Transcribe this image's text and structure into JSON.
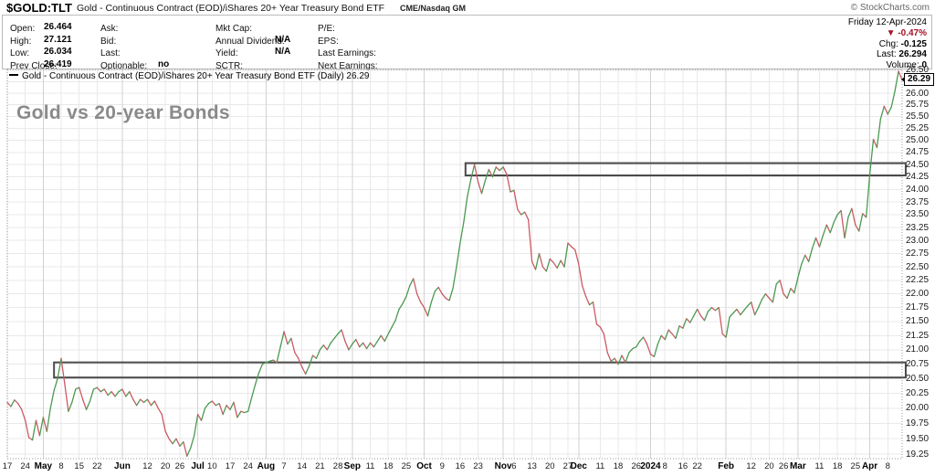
{
  "header": {
    "symbol": "$GOLD:TLT",
    "name": "Gold - Continuous Contract (EOD)/iShares 20+ Year Treasury Bond ETF",
    "exchange": "CME/Nasdaq GM",
    "copyright": "© StockCharts.com"
  },
  "quote": {
    "col1": [
      {
        "label": "Open:",
        "value": "26.464"
      },
      {
        "label": "High:",
        "value": "27.121"
      },
      {
        "label": "Low:",
        "value": "26.034"
      },
      {
        "label": "Prev Close:",
        "value": "26.419"
      }
    ],
    "col2": [
      {
        "label": "Ask:",
        "value": ""
      },
      {
        "label": "Bid:",
        "value": ""
      },
      {
        "label": "Last:",
        "value": ""
      },
      {
        "label": "Optionable:",
        "value": "no"
      }
    ],
    "col3": [
      {
        "label": "Mkt Cap:",
        "value": ""
      },
      {
        "label": "Annual Dividend:",
        "value": "N/A"
      },
      {
        "label": "Yield:",
        "value": "N/A"
      },
      {
        "label": "SCTR:",
        "value": ""
      }
    ],
    "col4": [
      {
        "label": "P/E:",
        "value": ""
      },
      {
        "label": "EPS:",
        "value": ""
      },
      {
        "label": "Last Earnings:",
        "value": ""
      },
      {
        "label": "Next Earnings:",
        "value": ""
      }
    ],
    "right": {
      "date": "Friday 12-Apr-2024",
      "down_arrow": "▼",
      "pct": "-0.47%",
      "rows": [
        {
          "label": "Chg:",
          "value": "-0.125"
        },
        {
          "label": "Last:",
          "value": "26.294"
        },
        {
          "label": "Volume:",
          "value": "0"
        }
      ]
    }
  },
  "legend": "Gold - Continuous Contract (EOD)/iShares 20+ Year Treasury Bond ETF (Daily) 26.29",
  "annotation": "Gold vs 20-year Bonds",
  "price_tag": "26.29",
  "colors": {
    "up": "#4a9a50",
    "down": "#cb5a63",
    "box": "#4a4a4a",
    "grid": "#e9e9e9",
    "grid_month": "#d2d2d2",
    "frame": "#999999",
    "annotation_gray": "#8a8a8a",
    "negative_red": "#a31226"
  },
  "chart_data": {
    "type": "line",
    "title": "Gold vs 20-year Bonds",
    "legend_label": "Gold - Continuous Contract (EOD)/iShares 20+ Year Treasury Bond ETF (Daily)",
    "last_value": 26.29,
    "scale": "log",
    "grid": true,
    "ylim": [
      19.18,
      26.52
    ],
    "y_tick_step": 0.25,
    "y_tick_labels": [
      "26.50",
      "26.00",
      "25.75",
      "25.50",
      "25.25",
      "25.00",
      "24.75",
      "24.50",
      "24.25",
      "24.00",
      "23.75",
      "23.50",
      "23.25",
      "23.00",
      "22.75",
      "22.50",
      "22.25",
      "22.00",
      "21.75",
      "21.50",
      "21.25",
      "21.00",
      "20.75",
      "20.50",
      "20.25",
      "20.00",
      "19.75",
      "19.50",
      "19.25"
    ],
    "x_ticks": [
      {
        "label": "17",
        "i": 0
      },
      {
        "label": "24",
        "i": 5
      },
      {
        "label": "May",
        "i": 10,
        "m": 1
      },
      {
        "label": "8",
        "i": 15
      },
      {
        "label": "15",
        "i": 20
      },
      {
        "label": "22",
        "i": 25
      },
      {
        "label": "Jun",
        "i": 32,
        "m": 1
      },
      {
        "label": "12",
        "i": 39
      },
      {
        "label": "20",
        "i": 44
      },
      {
        "label": "26",
        "i": 48
      },
      {
        "label": "Jul",
        "i": 53,
        "m": 1
      },
      {
        "label": "10",
        "i": 57
      },
      {
        "label": "17",
        "i": 62
      },
      {
        "label": "24",
        "i": 67
      },
      {
        "label": "Aug",
        "i": 72,
        "m": 1
      },
      {
        "label": "7",
        "i": 77
      },
      {
        "label": "14",
        "i": 82
      },
      {
        "label": "21",
        "i": 87
      },
      {
        "label": "28",
        "i": 92
      },
      {
        "label": "Sep",
        "i": 96,
        "m": 1
      },
      {
        "label": "11",
        "i": 101
      },
      {
        "label": "18",
        "i": 106
      },
      {
        "label": "25",
        "i": 111
      },
      {
        "label": "Oct",
        "i": 116,
        "m": 1
      },
      {
        "label": "9",
        "i": 121
      },
      {
        "label": "16",
        "i": 126
      },
      {
        "label": "23",
        "i": 131
      },
      {
        "label": "Nov",
        "i": 138,
        "m": 1
      },
      {
        "label": "6",
        "i": 141
      },
      {
        "label": "13",
        "i": 146
      },
      {
        "label": "20",
        "i": 151
      },
      {
        "label": "27",
        "i": 156
      },
      {
        "label": "Dec",
        "i": 159,
        "m": 1
      },
      {
        "label": "11",
        "i": 165
      },
      {
        "label": "18",
        "i": 170
      },
      {
        "label": "26",
        "i": 175
      },
      {
        "label": "2024",
        "i": 179,
        "m": 1
      },
      {
        "label": "8",
        "i": 183
      },
      {
        "label": "16",
        "i": 188
      },
      {
        "label": "22",
        "i": 192
      },
      {
        "label": "Feb",
        "i": 200,
        "m": 1
      },
      {
        "label": "12",
        "i": 207
      },
      {
        "label": "20",
        "i": 212
      },
      {
        "label": "26",
        "i": 216
      },
      {
        "label": "Mar",
        "i": 220,
        "m": 1
      },
      {
        "label": "11",
        "i": 226
      },
      {
        "label": "18",
        "i": 231
      },
      {
        "label": "25",
        "i": 236
      },
      {
        "label": "Apr",
        "i": 240,
        "m": 1
      },
      {
        "label": "8",
        "i": 245
      }
    ],
    "annotation_boxes": [
      {
        "name": "resistance-box-upper",
        "i1": 127.5,
        "i2": 250,
        "p1": 24.28,
        "p2": 24.53
      },
      {
        "name": "support-box-lower",
        "i1": 13,
        "i2": 250,
        "p1": 20.52,
        "p2": 20.78
      }
    ],
    "series": [
      20.1,
      20.03,
      20.14,
      20.08,
      19.98,
      19.8,
      19.52,
      19.48,
      19.8,
      19.55,
      19.85,
      19.62,
      20.0,
      20.3,
      20.5,
      20.85,
      20.4,
      19.95,
      20.1,
      20.32,
      20.35,
      20.15,
      19.98,
      20.12,
      20.32,
      20.35,
      20.28,
      20.32,
      20.22,
      20.28,
      20.2,
      20.28,
      20.32,
      20.2,
      20.28,
      20.15,
      20.05,
      20.15,
      20.1,
      20.15,
      20.05,
      20.12,
      20.0,
      19.9,
      19.62,
      19.5,
      19.42,
      19.5,
      19.38,
      19.45,
      19.22,
      19.35,
      19.55,
      19.9,
      19.8,
      20.0,
      20.08,
      20.12,
      20.05,
      20.08,
      19.9,
      20.05,
      19.98,
      20.1,
      19.85,
      19.95,
      19.93,
      19.95,
      20.18,
      20.4,
      20.6,
      20.75,
      20.78,
      20.8,
      20.82,
      20.78,
      21.05,
      21.32,
      21.1,
      21.2,
      20.95,
      20.85,
      20.7,
      20.58,
      20.72,
      20.9,
      20.85,
      21.0,
      21.08,
      21.0,
      21.12,
      21.2,
      21.28,
      21.35,
      21.15,
      21.0,
      21.1,
      21.18,
      21.05,
      21.12,
      21.02,
      21.12,
      21.05,
      21.15,
      21.25,
      21.15,
      21.28,
      21.4,
      21.52,
      21.72,
      21.82,
      21.95,
      22.15,
      22.28,
      22.0,
      21.85,
      21.75,
      21.6,
      21.85,
      22.05,
      22.12,
      22.0,
      21.92,
      21.88,
      22.1,
      22.5,
      22.95,
      23.35,
      23.85,
      24.2,
      24.5,
      24.15,
      23.92,
      24.18,
      24.4,
      24.25,
      24.45,
      24.38,
      24.45,
      24.3,
      23.95,
      23.98,
      23.6,
      23.5,
      23.55,
      23.4,
      22.6,
      22.45,
      22.75,
      22.5,
      22.42,
      22.65,
      22.58,
      22.48,
      22.62,
      22.5,
      22.95,
      22.88,
      22.82,
      22.55,
      22.15,
      21.95,
      21.8,
      21.85,
      21.45,
      21.4,
      21.28,
      20.95,
      20.8,
      20.85,
      20.75,
      20.9,
      20.78,
      20.95,
      21.02,
      21.05,
      21.15,
      21.22,
      21.1,
      20.92,
      20.88,
      21.1,
      21.25,
      21.18,
      21.35,
      21.28,
      21.2,
      21.42,
      21.38,
      21.55,
      21.48,
      21.6,
      21.72,
      21.6,
      21.52,
      21.68,
      21.75,
      21.7,
      21.75,
      21.28,
      21.22,
      21.58,
      21.65,
      21.72,
      21.62,
      21.7,
      21.78,
      21.85,
      21.62,
      21.75,
      21.9,
      22.0,
      21.92,
      21.85,
      22.18,
      22.25,
      22.0,
      21.92,
      22.1,
      22.02,
      22.3,
      22.55,
      22.72,
      22.6,
      22.85,
      23.05,
      22.88,
      23.1,
      23.3,
      23.15,
      23.35,
      23.5,
      23.58,
      23.05,
      23.45,
      23.62,
      23.3,
      23.18,
      23.52,
      23.45,
      24.3,
      25.02,
      24.85,
      25.45,
      25.72,
      25.55,
      25.7,
      26.05,
      26.48,
      26.29
    ]
  }
}
